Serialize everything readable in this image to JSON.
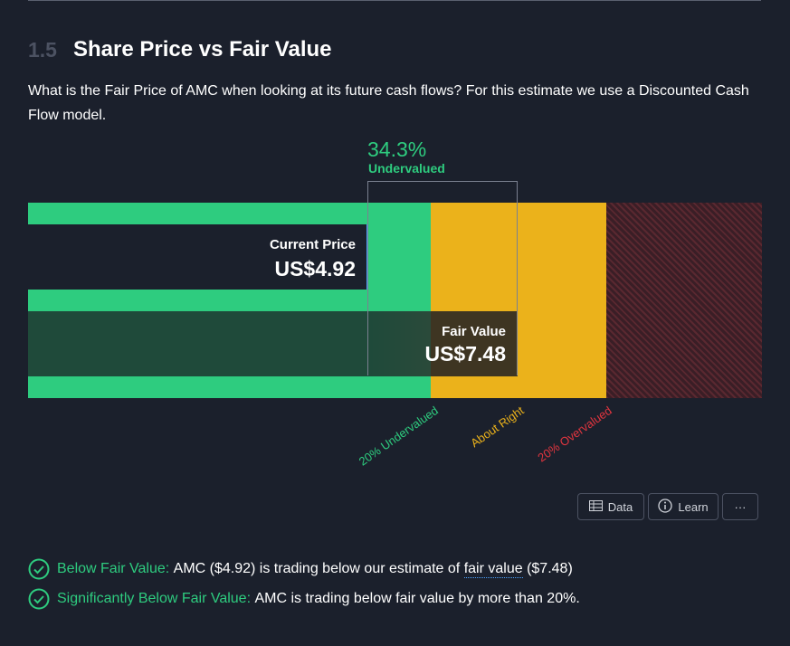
{
  "section": {
    "number": "1.5",
    "title": "Share Price vs Fair Value",
    "description": "What is the Fair Price of AMC when looking at its future cash flows? For this estimate we use a Discounted Cash Flow model."
  },
  "valuation": {
    "percent": "34.3%",
    "percent_label": "Undervalued",
    "current_price_label": "Current Price",
    "current_price_value": "US$4.92",
    "fair_value_label": "Fair Value",
    "fair_value_value": "US$7.48",
    "current_price_number": 4.92,
    "fair_value_number": 7.48
  },
  "zones": {
    "undervalued": "20% Undervalued",
    "about_right": "About Right",
    "overvalued": "20% Overvalued"
  },
  "buttons": {
    "data": "Data",
    "learn": "Learn",
    "more": "···"
  },
  "checks": [
    {
      "title": "Below Fair Value:",
      "text_before": "AMC ($4.92) is trading below our estimate of",
      "link": "fair value",
      "text_after": "($7.48)"
    },
    {
      "title": "Significantly Below Fair Value:",
      "text": "AMC is trading below fair value by more than 20%."
    }
  ],
  "colors": {
    "green": "#2ecc7f",
    "yellow": "#ebb21b",
    "red": "#e0353f",
    "background": "#1b202c"
  },
  "icons": {
    "data": "table-icon",
    "learn": "info-icon",
    "more": "ellipsis-icon",
    "check": "check-circle-icon"
  }
}
